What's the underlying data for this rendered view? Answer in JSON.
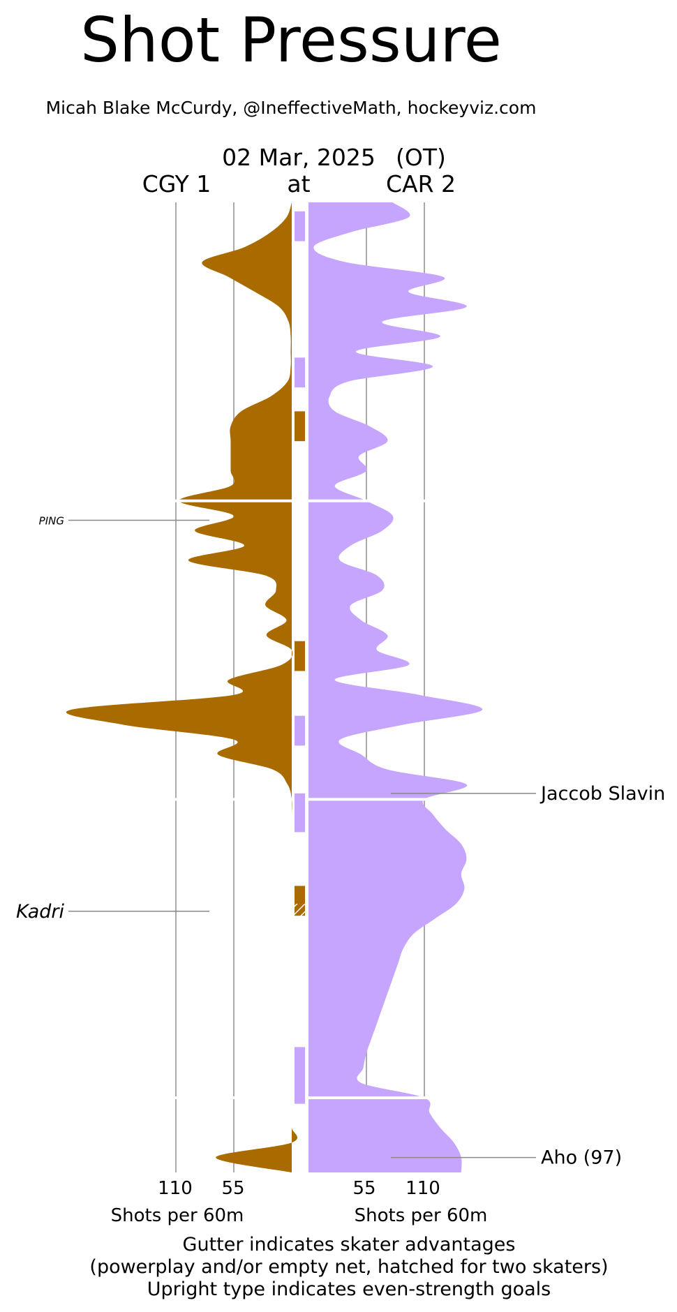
{
  "chart_data": {
    "type": "area",
    "title": "Shot Pressure",
    "subtitle": "Micah Blake McCurdy, @IneffectiveMath, hockeyviz.com",
    "header": {
      "date": "02 Mar, 2025",
      "ot": "(OT)",
      "at": "at",
      "away": "CGY 1",
      "home": "CAR 2"
    },
    "x_ticks": [
      "110",
      "55"
    ],
    "xlabel": "Shots per 60m",
    "ylim_minutes": [
      0,
      65
    ],
    "period_breaks_minutes": [
      20,
      40,
      60
    ],
    "gridlines": [
      55,
      110
    ],
    "footnotes": [
      "Gutter indicates skater advantages",
      "(powerplay and/or empty net, hatched for two skaters)",
      "Upright type indicates even-strength goals"
    ],
    "colors": {
      "CGY": "#a96b00",
      "CAR": "#c6a5ff",
      "grid": "#aaaaaa"
    },
    "series": [
      {
        "name": "CGY",
        "side": "left",
        "minutes": [
          0,
          1,
          2,
          3,
          4,
          5,
          6,
          7,
          8,
          9,
          10,
          11,
          12,
          13,
          14,
          15,
          16,
          17,
          18,
          19,
          20,
          21,
          22,
          23,
          24,
          25,
          26,
          27,
          28,
          29,
          30,
          31,
          32,
          33,
          34,
          35,
          36,
          37,
          38,
          39,
          40,
          41,
          42,
          43,
          44,
          45,
          46,
          47,
          48,
          49,
          50,
          51,
          52,
          53,
          54,
          55,
          56,
          57,
          58,
          59,
          60,
          61,
          62,
          63,
          64,
          65
        ],
        "values": [
          0,
          5,
          20,
          45,
          85,
          60,
          35,
          12,
          3,
          1,
          1,
          1,
          4,
          20,
          48,
          58,
          58,
          58,
          58,
          58,
          107,
          55,
          92,
          45,
          98,
          25,
          15,
          25,
          5,
          24,
          0,
          10,
          60,
          55,
          210,
          160,
          55,
          70,
          18,
          4,
          0,
          0,
          0,
          0,
          0,
          0,
          0,
          0,
          0,
          0,
          0,
          0,
          0,
          0,
          0,
          0,
          0,
          0,
          0,
          0,
          0,
          0,
          0,
          0,
          72,
          0
        ]
      },
      {
        "name": "CAR",
        "side": "right",
        "minutes": [
          0,
          1,
          2,
          3,
          4,
          5,
          6,
          7,
          8,
          9,
          10,
          11,
          12,
          13,
          14,
          15,
          16,
          17,
          18,
          19,
          20,
          21,
          22,
          23,
          24,
          25,
          26,
          27,
          28,
          29,
          30,
          31,
          32,
          33,
          34,
          35,
          36,
          37,
          38,
          39,
          40,
          41,
          42,
          43,
          44,
          45,
          46,
          47,
          48,
          49,
          50,
          51,
          52,
          53,
          54,
          55,
          56,
          57,
          58,
          59,
          60,
          61,
          62,
          63,
          64,
          65
        ],
        "values": [
          80,
          95,
          40,
          5,
          35,
          128,
          95,
          150,
          70,
          125,
          45,
          118,
          38,
          20,
          25,
          58,
          75,
          48,
          55,
          25,
          55,
          80,
          70,
          40,
          30,
          65,
          70,
          40,
          50,
          75,
          65,
          95,
          25,
          105,
          165,
          90,
          30,
          50,
          75,
          150,
          110,
          118,
          130,
          145,
          150,
          145,
          148,
          140,
          120,
          100,
          90,
          85,
          80,
          75,
          70,
          65,
          60,
          55,
          52,
          50,
          110,
          115,
          125,
          138,
          145,
          145
        ]
      }
    ],
    "gutter": [
      {
        "team": "CAR",
        "start": 0.6,
        "end": 2.6,
        "hatched": false
      },
      {
        "team": "CAR",
        "start": 10.4,
        "end": 12.4,
        "hatched": false
      },
      {
        "team": "CGY",
        "start": 14.0,
        "end": 16.0,
        "hatched": false
      },
      {
        "team": "CGY",
        "start": 29.4,
        "end": 31.4,
        "hatched": false
      },
      {
        "team": "CAR",
        "start": 34.4,
        "end": 36.4,
        "hatched": false
      },
      {
        "team": "CAR",
        "start": 39.6,
        "end": 42.2,
        "hatched": false
      },
      {
        "team": "CGY",
        "start": 45.8,
        "end": 47.0,
        "hatched": false
      },
      {
        "team": "CGY",
        "start": 47.0,
        "end": 47.8,
        "hatched": true
      },
      {
        "team": "CAR",
        "start": 56.6,
        "end": 60.4,
        "hatched": false
      }
    ],
    "goals": [
      {
        "team": "CGY",
        "label": "PING",
        "minute": 21.3,
        "even_strength": false,
        "size": "small"
      },
      {
        "team": "CGY",
        "label": "Kadri",
        "minute": 47.5,
        "even_strength": false,
        "size": "normal"
      },
      {
        "team": "CAR",
        "label": "Jaccob Slavin",
        "minute": 39.6,
        "even_strength": true,
        "size": "normal"
      },
      {
        "team": "CAR",
        "label": "Aho (97)",
        "minute": 64.0,
        "even_strength": true,
        "size": "normal"
      }
    ]
  }
}
